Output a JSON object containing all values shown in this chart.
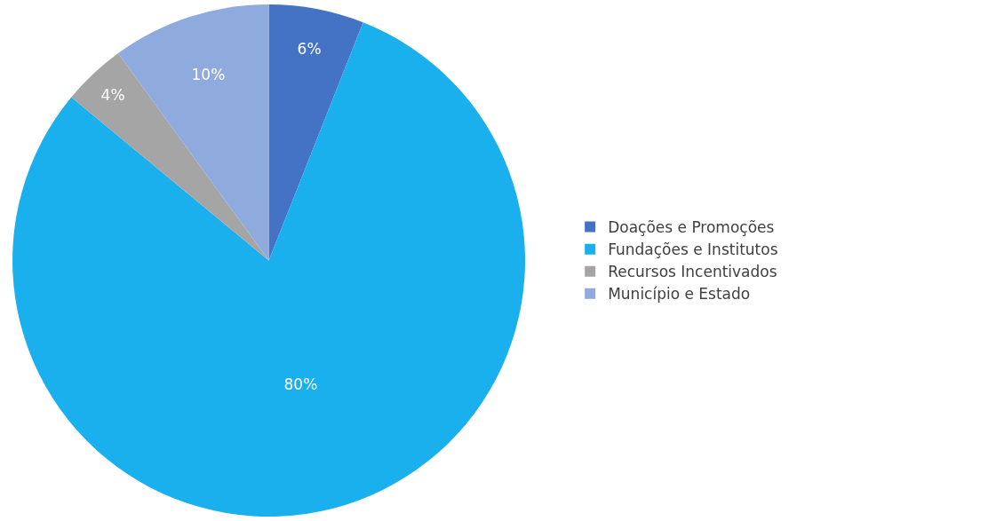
{
  "chart_data": {
    "type": "pie",
    "categories": [
      "Doações e Promoções",
      "Fundações e Institutos",
      "Recursos Incentivados",
      "Município e Estado"
    ],
    "values": [
      6,
      80,
      4,
      10
    ],
    "value_labels": [
      "6%",
      "80%",
      "4%",
      "10%"
    ],
    "colors": [
      "#4472c4",
      "#1ab0ee",
      "#a5a5a5",
      "#8faadc"
    ],
    "legend": "right"
  }
}
